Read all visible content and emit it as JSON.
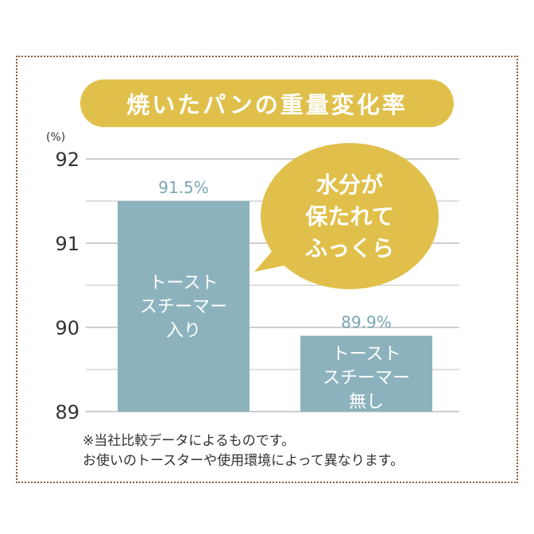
{
  "title": "焼いたパンの重量変化率",
  "bubble_lines": [
    "水分が",
    "保たれて",
    "ふっくら"
  ],
  "notes": [
    "※当社比較データによるものです。",
    "お使いのトースターや使用環境によって異なります。"
  ],
  "colors": {
    "accent": "#e0c04a",
    "bar": "#8cb3bd",
    "value_label": "#7aa7b3",
    "border": "#8a5a3a"
  },
  "chart_data": {
    "type": "bar",
    "unit_label": "(%)",
    "ylim": [
      89,
      92
    ],
    "yticks": [
      "89",
      "90",
      "91",
      "92"
    ],
    "grid": true,
    "categories": [
      [
        "トースト",
        "スチーマー",
        "入り"
      ],
      [
        "トースト",
        "スチーマー",
        "無し"
      ]
    ],
    "values": [
      91.5,
      89.9
    ],
    "value_labels": [
      "91.5%",
      "89.9%"
    ]
  }
}
